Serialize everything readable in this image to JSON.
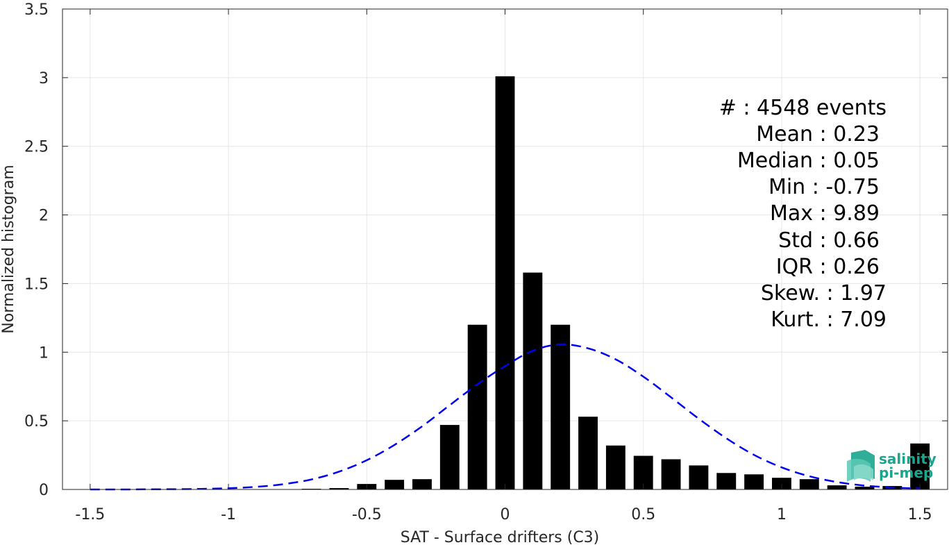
{
  "chart_data": {
    "type": "bar",
    "xlabel": "SAT - Surface drifters (C3)",
    "ylabel": "Normalized histogram",
    "xlim": [
      -1.6,
      1.6
    ],
    "ylim": [
      0,
      3.5
    ],
    "x_ticks": [
      -1.5,
      -1,
      -0.5,
      0,
      0.5,
      1,
      1.5
    ],
    "x_tick_labels": [
      "-1.5",
      "-1",
      "-0.5",
      "0",
      "0.5",
      "1",
      "1.5"
    ],
    "y_ticks": [
      0,
      0.5,
      1,
      1.5,
      2,
      2.5,
      3,
      3.5
    ],
    "y_tick_labels": [
      "0",
      "0.5",
      "1",
      "1.5",
      "2",
      "2.5",
      "3",
      "3.5"
    ],
    "grid": true,
    "bar_width": 0.07,
    "bar_color": "#000000",
    "series": [
      {
        "type": "bar",
        "x": [
          -0.7,
          -0.6,
          -0.5,
          -0.4,
          -0.3,
          -0.2,
          -0.1,
          0.0,
          0.1,
          0.2,
          0.3,
          0.4,
          0.5,
          0.6,
          0.7,
          0.8,
          0.9,
          1.0,
          1.1,
          1.2,
          1.3,
          1.4,
          1.5
        ],
        "values": [
          0.005,
          0.01,
          0.04,
          0.07,
          0.075,
          0.47,
          1.2,
          3.01,
          1.58,
          1.2,
          0.53,
          0.32,
          0.245,
          0.22,
          0.175,
          0.12,
          0.11,
          0.085,
          0.075,
          0.03,
          0.02,
          0.025,
          0.335
        ]
      },
      {
        "type": "line",
        "style": "dashed",
        "color": "#0000ee",
        "curve": "normal-fit",
        "x": [
          -1.5,
          -1.4,
          -1.3,
          -1.2,
          -1.1,
          -1.0,
          -0.9,
          -0.8,
          -0.7,
          -0.6,
          -0.5,
          -0.4,
          -0.3,
          -0.2,
          -0.1,
          0.0,
          0.1,
          0.2,
          0.3,
          0.4,
          0.5,
          0.6,
          0.7,
          0.8,
          0.9,
          1.0,
          1.1,
          1.2,
          1.3,
          1.4,
          1.5
        ],
        "values": [
          0.0,
          0.0,
          0.001,
          0.002,
          0.004,
          0.009,
          0.019,
          0.039,
          0.073,
          0.13,
          0.213,
          0.324,
          0.46,
          0.614,
          0.766,
          0.899,
          1.01,
          1.057,
          1.028,
          0.948,
          0.822,
          0.671,
          0.516,
          0.373,
          0.252,
          0.161,
          0.096,
          0.054,
          0.028,
          0.014,
          0.007
        ]
      }
    ],
    "stats": [
      {
        "label": "#  : 4548 events"
      },
      {
        "label": "Mean : 0.23"
      },
      {
        "label": "Median : 0.05"
      },
      {
        "label": "Min : -0.75"
      },
      {
        "label": "Max : 9.89"
      },
      {
        "label": "Std : 0.66"
      },
      {
        "label": "IQR : 0.26"
      },
      {
        "label": "Skew. : 1.97"
      },
      {
        "label": "Kurt. : 7.09"
      }
    ]
  },
  "logo": {
    "line1": "salinity",
    "line2": "pi-mep",
    "color": "#1aa58f"
  }
}
